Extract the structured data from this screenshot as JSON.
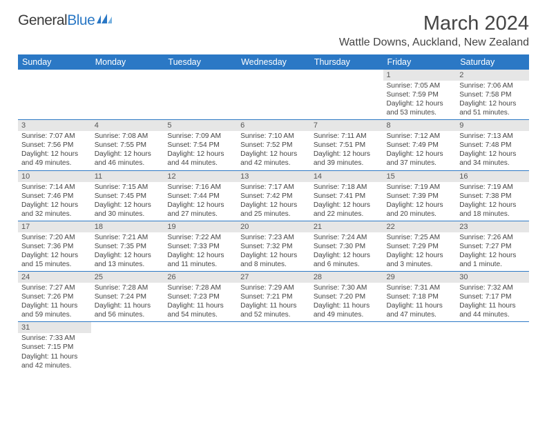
{
  "logo": {
    "text1": "General",
    "text2": "Blue"
  },
  "title": "March 2024",
  "subtitle": "Wattle Downs, Auckland, New Zealand",
  "colors": {
    "header_bg": "#2b78c5",
    "header_fg": "#ffffff",
    "daynum_bg": "#e6e6e6",
    "row_border": "#2b78c5",
    "text": "#444444"
  },
  "weekdays": [
    "Sunday",
    "Monday",
    "Tuesday",
    "Wednesday",
    "Thursday",
    "Friday",
    "Saturday"
  ],
  "weeks": [
    [
      null,
      null,
      null,
      null,
      null,
      {
        "n": "1",
        "sunrise": "Sunrise: 7:05 AM",
        "sunset": "Sunset: 7:59 PM",
        "daylight": "Daylight: 12 hours and 53 minutes."
      },
      {
        "n": "2",
        "sunrise": "Sunrise: 7:06 AM",
        "sunset": "Sunset: 7:58 PM",
        "daylight": "Daylight: 12 hours and 51 minutes."
      }
    ],
    [
      {
        "n": "3",
        "sunrise": "Sunrise: 7:07 AM",
        "sunset": "Sunset: 7:56 PM",
        "daylight": "Daylight: 12 hours and 49 minutes."
      },
      {
        "n": "4",
        "sunrise": "Sunrise: 7:08 AM",
        "sunset": "Sunset: 7:55 PM",
        "daylight": "Daylight: 12 hours and 46 minutes."
      },
      {
        "n": "5",
        "sunrise": "Sunrise: 7:09 AM",
        "sunset": "Sunset: 7:54 PM",
        "daylight": "Daylight: 12 hours and 44 minutes."
      },
      {
        "n": "6",
        "sunrise": "Sunrise: 7:10 AM",
        "sunset": "Sunset: 7:52 PM",
        "daylight": "Daylight: 12 hours and 42 minutes."
      },
      {
        "n": "7",
        "sunrise": "Sunrise: 7:11 AM",
        "sunset": "Sunset: 7:51 PM",
        "daylight": "Daylight: 12 hours and 39 minutes."
      },
      {
        "n": "8",
        "sunrise": "Sunrise: 7:12 AM",
        "sunset": "Sunset: 7:49 PM",
        "daylight": "Daylight: 12 hours and 37 minutes."
      },
      {
        "n": "9",
        "sunrise": "Sunrise: 7:13 AM",
        "sunset": "Sunset: 7:48 PM",
        "daylight": "Daylight: 12 hours and 34 minutes."
      }
    ],
    [
      {
        "n": "10",
        "sunrise": "Sunrise: 7:14 AM",
        "sunset": "Sunset: 7:46 PM",
        "daylight": "Daylight: 12 hours and 32 minutes."
      },
      {
        "n": "11",
        "sunrise": "Sunrise: 7:15 AM",
        "sunset": "Sunset: 7:45 PM",
        "daylight": "Daylight: 12 hours and 30 minutes."
      },
      {
        "n": "12",
        "sunrise": "Sunrise: 7:16 AM",
        "sunset": "Sunset: 7:44 PM",
        "daylight": "Daylight: 12 hours and 27 minutes."
      },
      {
        "n": "13",
        "sunrise": "Sunrise: 7:17 AM",
        "sunset": "Sunset: 7:42 PM",
        "daylight": "Daylight: 12 hours and 25 minutes."
      },
      {
        "n": "14",
        "sunrise": "Sunrise: 7:18 AM",
        "sunset": "Sunset: 7:41 PM",
        "daylight": "Daylight: 12 hours and 22 minutes."
      },
      {
        "n": "15",
        "sunrise": "Sunrise: 7:19 AM",
        "sunset": "Sunset: 7:39 PM",
        "daylight": "Daylight: 12 hours and 20 minutes."
      },
      {
        "n": "16",
        "sunrise": "Sunrise: 7:19 AM",
        "sunset": "Sunset: 7:38 PM",
        "daylight": "Daylight: 12 hours and 18 minutes."
      }
    ],
    [
      {
        "n": "17",
        "sunrise": "Sunrise: 7:20 AM",
        "sunset": "Sunset: 7:36 PM",
        "daylight": "Daylight: 12 hours and 15 minutes."
      },
      {
        "n": "18",
        "sunrise": "Sunrise: 7:21 AM",
        "sunset": "Sunset: 7:35 PM",
        "daylight": "Daylight: 12 hours and 13 minutes."
      },
      {
        "n": "19",
        "sunrise": "Sunrise: 7:22 AM",
        "sunset": "Sunset: 7:33 PM",
        "daylight": "Daylight: 12 hours and 11 minutes."
      },
      {
        "n": "20",
        "sunrise": "Sunrise: 7:23 AM",
        "sunset": "Sunset: 7:32 PM",
        "daylight": "Daylight: 12 hours and 8 minutes."
      },
      {
        "n": "21",
        "sunrise": "Sunrise: 7:24 AM",
        "sunset": "Sunset: 7:30 PM",
        "daylight": "Daylight: 12 hours and 6 minutes."
      },
      {
        "n": "22",
        "sunrise": "Sunrise: 7:25 AM",
        "sunset": "Sunset: 7:29 PM",
        "daylight": "Daylight: 12 hours and 3 minutes."
      },
      {
        "n": "23",
        "sunrise": "Sunrise: 7:26 AM",
        "sunset": "Sunset: 7:27 PM",
        "daylight": "Daylight: 12 hours and 1 minute."
      }
    ],
    [
      {
        "n": "24",
        "sunrise": "Sunrise: 7:27 AM",
        "sunset": "Sunset: 7:26 PM",
        "daylight": "Daylight: 11 hours and 59 minutes."
      },
      {
        "n": "25",
        "sunrise": "Sunrise: 7:28 AM",
        "sunset": "Sunset: 7:24 PM",
        "daylight": "Daylight: 11 hours and 56 minutes."
      },
      {
        "n": "26",
        "sunrise": "Sunrise: 7:28 AM",
        "sunset": "Sunset: 7:23 PM",
        "daylight": "Daylight: 11 hours and 54 minutes."
      },
      {
        "n": "27",
        "sunrise": "Sunrise: 7:29 AM",
        "sunset": "Sunset: 7:21 PM",
        "daylight": "Daylight: 11 hours and 52 minutes."
      },
      {
        "n": "28",
        "sunrise": "Sunrise: 7:30 AM",
        "sunset": "Sunset: 7:20 PM",
        "daylight": "Daylight: 11 hours and 49 minutes."
      },
      {
        "n": "29",
        "sunrise": "Sunrise: 7:31 AM",
        "sunset": "Sunset: 7:18 PM",
        "daylight": "Daylight: 11 hours and 47 minutes."
      },
      {
        "n": "30",
        "sunrise": "Sunrise: 7:32 AM",
        "sunset": "Sunset: 7:17 PM",
        "daylight": "Daylight: 11 hours and 44 minutes."
      }
    ],
    [
      {
        "n": "31",
        "sunrise": "Sunrise: 7:33 AM",
        "sunset": "Sunset: 7:15 PM",
        "daylight": "Daylight: 11 hours and 42 minutes."
      },
      null,
      null,
      null,
      null,
      null,
      null
    ]
  ]
}
